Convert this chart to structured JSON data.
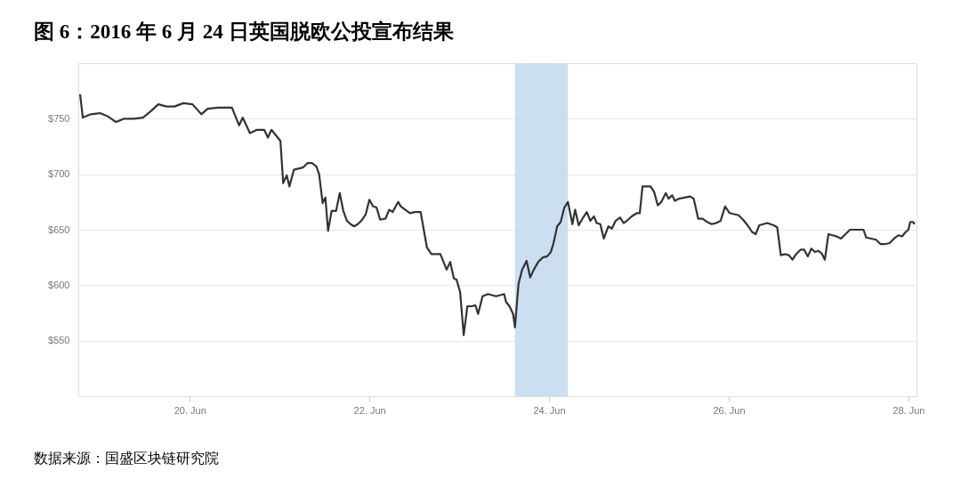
{
  "chart_data": {
    "type": "line",
    "title": "图 6：2016 年 6 月 24 日英国脱欧公投宣布结果",
    "annotations": [
      "数据来源：国盛区块链研究院"
    ],
    "x": [
      "2016-06-18T18:43",
      "2016-06-18T19:26",
      "2016-06-18T21:36",
      "2016-06-19T00:00",
      "2016-06-19T02:10",
      "2016-06-19T04:19",
      "2016-06-19T06:29",
      "2016-06-19T09:07",
      "2016-06-19T11:31",
      "2016-06-19T13:41",
      "2016-06-19T15:36",
      "2016-06-19T17:46",
      "2016-06-19T19:55",
      "2016-06-19T22:19",
      "2016-06-20T00:43",
      "2016-06-20T03:07",
      "2016-06-20T04:48",
      "2016-06-20T07:41",
      "2016-06-20T11:17",
      "2016-06-20T12:14",
      "2016-06-20T13:12",
      "2016-06-20T14:10",
      "2016-06-20T16:05",
      "2016-06-20T18:00",
      "2016-06-20T19:55",
      "2016-06-20T20:53",
      "2016-06-20T21:50",
      "2016-06-20T23:02",
      "2016-06-21T00:14",
      "2016-06-21T00:58",
      "2016-06-21T01:55",
      "2016-06-21T02:38",
      "2016-06-21T03:50",
      "2016-06-21T06:14",
      "2016-06-21T07:26",
      "2016-06-21T08:38",
      "2016-06-21T09:50",
      "2016-06-21T10:34",
      "2016-06-21T11:31",
      "2016-06-21T12:14",
      "2016-06-21T12:58",
      "2016-06-21T13:55",
      "2016-06-21T15:07",
      "2016-06-21T16:05",
      "2016-06-21T17:02",
      "2016-06-21T18:00",
      "2016-06-21T18:58",
      "2016-06-21T19:55",
      "2016-06-21T20:53",
      "2016-06-21T21:50",
      "2016-06-21T23:02",
      "2016-06-22T00:00",
      "2016-06-22T00:58",
      "2016-06-22T01:55",
      "2016-06-22T02:53",
      "2016-06-22T04:19",
      "2016-06-22T05:17",
      "2016-06-22T06:14",
      "2016-06-22T07:41",
      "2016-06-22T08:24",
      "2016-06-22T09:36",
      "2016-06-22T10:48",
      "2016-06-22T12:14",
      "2016-06-22T13:41",
      "2016-06-22T15:22",
      "2016-06-22T16:34",
      "2016-06-22T18:58",
      "2016-06-22T19:41",
      "2016-06-22T20:38",
      "2016-06-22T21:36",
      "2016-06-22T22:34",
      "2016-06-22T23:17",
      "2016-06-23T00:14",
      "2016-06-23T01:12",
      "2016-06-23T02:10",
      "2016-06-23T03:22",
      "2016-06-23T04:19",
      "2016-06-23T05:02",
      "2016-06-23T06:14",
      "2016-06-23T07:41",
      "2016-06-23T09:50",
      "2016-06-23T12:00",
      "2016-06-23T12:29",
      "2016-06-23T13:26",
      "2016-06-23T14:24",
      "2016-06-23T14:53",
      "2016-06-23T15:50",
      "2016-06-23T16:48",
      "2016-06-23T18:00",
      "2016-06-23T18:58",
      "2016-06-23T19:55",
      "2016-06-23T21:07",
      "2016-06-23T22:19",
      "2016-06-23T23:31",
      "2016-06-24T00:29",
      "2016-06-24T01:12",
      "2016-06-24T02:10",
      "2016-06-24T03:07",
      "2016-06-24T04:05",
      "2016-06-24T05:02",
      "2016-06-24T06:14",
      "2016-06-24T06:58",
      "2016-06-24T07:55",
      "2016-06-24T09:07",
      "2016-06-24T10:05",
      "2016-06-24T11:02",
      "2016-06-24T12:00",
      "2016-06-24T12:43",
      "2016-06-24T13:41",
      "2016-06-24T14:38",
      "2016-06-24T15:50",
      "2016-06-24T16:48",
      "2016-06-24T17:46",
      "2016-06-24T18:58",
      "2016-06-24T19:55",
      "2016-06-24T21:07",
      "2016-06-24T22:05",
      "2016-06-24T23:31",
      "2016-06-25T00:14",
      "2016-06-25T00:58",
      "2016-06-25T03:07",
      "2016-06-25T04:05",
      "2016-06-25T05:02",
      "2016-06-25T06:00",
      "2016-06-25T07:12",
      "2016-06-25T07:55",
      "2016-06-25T08:53",
      "2016-06-25T09:36",
      "2016-06-25T10:48",
      "2016-06-25T13:41",
      "2016-06-25T14:38",
      "2016-06-25T15:50",
      "2016-06-25T17:02",
      "2016-06-25T18:14",
      "2016-06-25T19:26",
      "2016-06-25T20:38",
      "2016-06-25T21:50",
      "2016-06-25T23:02",
      "2016-06-26T00:14",
      "2016-06-26T02:38",
      "2016-06-26T03:50",
      "2016-06-26T05:02",
      "2016-06-26T06:14",
      "2016-06-26T07:12",
      "2016-06-26T08:10",
      "2016-06-26T10:19",
      "2016-06-26T12:00",
      "2016-06-26T12:58",
      "2016-06-26T13:55",
      "2016-06-26T15:07",
      "2016-06-26T16:05",
      "2016-06-26T17:02",
      "2016-06-26T18:00",
      "2016-06-26T19:12",
      "2016-06-26T20:10",
      "2016-06-26T21:07",
      "2016-06-26T22:05",
      "2016-06-26T23:02",
      "2016-06-27T00:00",
      "2016-06-27T00:58",
      "2016-06-27T01:41",
      "2016-06-27T02:38",
      "2016-06-27T04:48",
      "2016-06-27T06:00",
      "2016-06-27T07:12",
      "2016-06-27T08:24",
      "2016-06-27T12:00",
      "2016-06-27T12:43",
      "2016-06-27T15:22",
      "2016-06-27T16:34",
      "2016-06-27T17:46",
      "2016-06-27T18:58",
      "2016-06-27T20:10",
      "2016-06-27T21:22",
      "2016-06-27T22:19",
      "2016-06-27T23:17",
      "2016-06-28T00:00",
      "2016-06-28T00:29",
      "2016-06-28T01:12",
      "2016-06-28T01:41"
    ],
    "series": [
      {
        "color": "#333333",
        "values": [
          772,
          751,
          754,
          755,
          752,
          747,
          750,
          750,
          751,
          757,
          763,
          761,
          761,
          764,
          763,
          754,
          759,
          760,
          760,
          752,
          744,
          751,
          737,
          740,
          740,
          733,
          740,
          735,
          730,
          692,
          699,
          689,
          704,
          706,
          710,
          710,
          707,
          700,
          674,
          679,
          649,
          667,
          667,
          683,
          667,
          658,
          655,
          653,
          655,
          658,
          664,
          677,
          671,
          670,
          659,
          660,
          668,
          666,
          675,
          671,
          668,
          665,
          666,
          666,
          634,
          628,
          628,
          622,
          614,
          621,
          606,
          605,
          594,
          555,
          581,
          581,
          582,
          574,
          590,
          592,
          590,
          592,
          585,
          581,
          574,
          562,
          601,
          614,
          622,
          607,
          614,
          621,
          625,
          626,
          630,
          638,
          653,
          657,
          670,
          675,
          655,
          668,
          654,
          661,
          666,
          658,
          662,
          656,
          655,
          642,
          653,
          651,
          658,
          661,
          656,
          659,
          662,
          665,
          665,
          689,
          689,
          684,
          672,
          675,
          683,
          678,
          681,
          676,
          678,
          680,
          678,
          660,
          660,
          657,
          655,
          656,
          658,
          671,
          665,
          663,
          659,
          654,
          648,
          646,
          654,
          656,
          654,
          652,
          627,
          628,
          627,
          623,
          628,
          632,
          632,
          626,
          633,
          630,
          631,
          628,
          623,
          646,
          644,
          642,
          646,
          650,
          650,
          643,
          641,
          637,
          637,
          638,
          642,
          645,
          644,
          648,
          650,
          657,
          657,
          655
        ]
      }
    ],
    "xlim": [
      "2016-06-18T18:14",
      "2016-06-28T02:10"
    ],
    "xticks": [
      {
        "value": "2016-06-20T00:00",
        "label": "20. Jun"
      },
      {
        "value": "2016-06-22T00:00",
        "label": "22. Jun"
      },
      {
        "value": "2016-06-24T00:00",
        "label": "24. Jun"
      },
      {
        "value": "2016-06-26T00:00",
        "label": "26. Jun"
      },
      {
        "value": "2016-06-28T00:00",
        "label": "28. Jun"
      }
    ],
    "ylim": [
      500,
      800
    ],
    "yticks": [
      {
        "value": 550,
        "label": "$550"
      },
      {
        "value": 600,
        "label": "$600"
      },
      {
        "value": 650,
        "label": "$650"
      },
      {
        "value": 700,
        "label": "$700"
      },
      {
        "value": 750,
        "label": "$750"
      }
    ],
    "grid": "y",
    "legend": false,
    "bands": [
      {
        "axis": "x",
        "from": "2016-06-23T14:53",
        "to": "2016-06-24T05:02",
        "color": "#c6dbef"
      }
    ]
  }
}
